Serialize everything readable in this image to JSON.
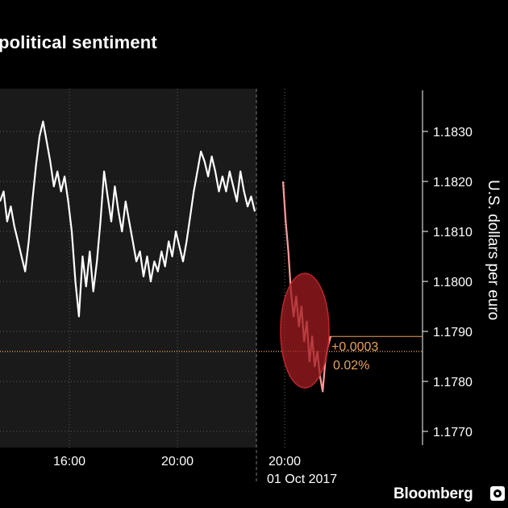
{
  "title": "political sentiment",
  "brand": "Bloomberg",
  "colors": {
    "background": "#000000",
    "plot_area": "#1a1a1a",
    "line": "#ffffff",
    "highlight": "#ff9a9a",
    "annotation": "#e8a15a",
    "ellipse": "#a01c22"
  },
  "annotation": {
    "change": "+0.0003",
    "percent": "0.02%"
  },
  "chart_data": {
    "type": "line",
    "ylabel": "U.S. dollars per euro",
    "ylim": [
      1.1765,
      1.1838
    ],
    "yticks": [
      "1.1770",
      "1.1780",
      "1.1790",
      "1.1800",
      "1.1810",
      "1.1820",
      "1.1830"
    ],
    "xticks": [
      {
        "label": "16:00",
        "sublabel": ""
      },
      {
        "label": "20:00",
        "sublabel": ""
      },
      {
        "label": "20:00",
        "sublabel": "01 Oct 2017"
      }
    ],
    "reference_line": 1.1786,
    "last_value": 1.1789,
    "series": [
      {
        "values": [
          1.1816,
          1.1818,
          1.1812,
          1.1815,
          1.1811,
          1.1808,
          1.1805,
          1.1802,
          1.1808,
          1.1816,
          1.1823,
          1.1829,
          1.1832,
          1.1828,
          1.1824,
          1.1819,
          1.1822,
          1.1818,
          1.1821,
          1.1816,
          1.181,
          1.18,
          1.1793,
          1.1805,
          1.1799,
          1.1806,
          1.1798,
          1.1804,
          1.1812,
          1.1822,
          1.1817,
          1.1812,
          1.1819,
          1.1814,
          1.181,
          1.1816,
          1.1812,
          1.1808,
          1.1804,
          1.1806,
          1.1801,
          1.1805,
          1.18,
          1.1804,
          1.1802,
          1.1806,
          1.1803,
          1.1808,
          1.1805,
          1.181,
          1.1807,
          1.1804,
          1.1808,
          1.1813,
          1.1818,
          1.1822,
          1.1826,
          1.1824,
          1.1821,
          1.1825,
          1.1822,
          1.1818,
          1.1821,
          1.1818,
          1.1822,
          1.1819,
          1.1816,
          1.1822,
          1.1818,
          1.1815,
          1.1817,
          1.1814
        ]
      },
      {
        "values": [
          1.182,
          1.1812,
          1.1806,
          1.1798,
          1.1793,
          1.1797,
          1.1791,
          1.1795,
          1.1788,
          1.1792,
          1.1784,
          1.1789,
          1.1783,
          1.1786,
          1.1781,
          1.1778,
          1.1784,
          1.1787,
          1.1789
        ]
      }
    ]
  }
}
